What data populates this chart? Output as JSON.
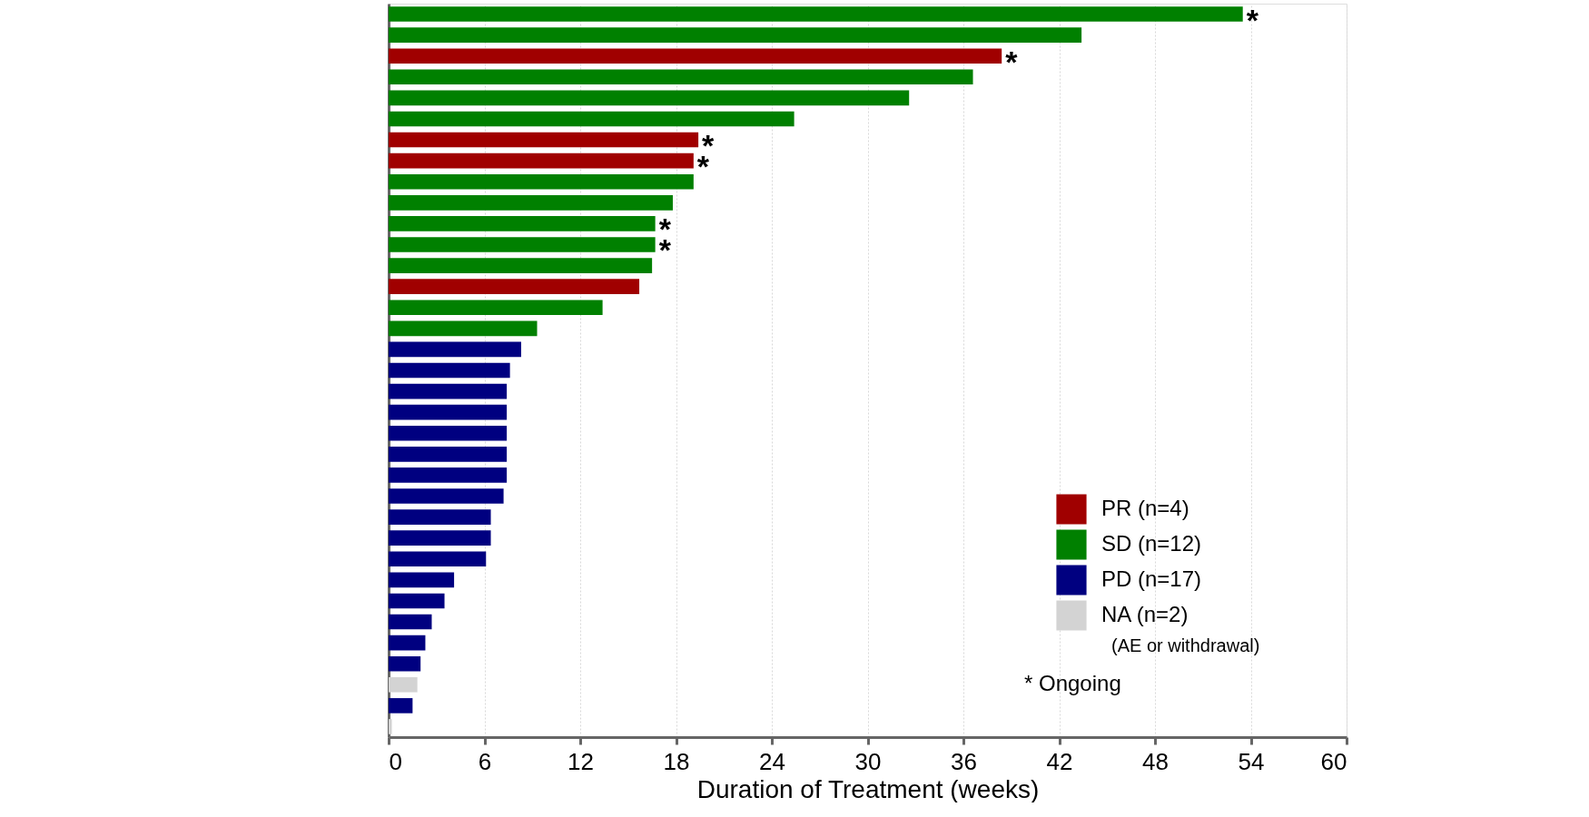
{
  "chart_data": {
    "type": "bar",
    "orientation": "horizontal",
    "xlabel": "Duration of Treatment (weeks)",
    "categories": [
      null,
      null,
      null,
      null,
      null,
      null,
      null,
      null,
      null,
      null,
      null,
      null,
      null,
      null,
      null,
      null,
      null,
      null,
      null,
      null,
      null,
      null,
      null,
      null,
      null,
      null,
      null,
      null,
      null,
      null,
      null,
      null,
      null,
      null,
      null
    ],
    "series": [
      {
        "name": "PR (n=4)",
        "color": "#a00000",
        "values": [
          null,
          null,
          38.4,
          null,
          null,
          null,
          19.4,
          19.1,
          null,
          null,
          null,
          null,
          null,
          15.7,
          null,
          null,
          null,
          null,
          null,
          null,
          null,
          null,
          null,
          null,
          null,
          null,
          null,
          null,
          null,
          null,
          null,
          null,
          null,
          null,
          null
        ]
      },
      {
        "name": "SD (n=12)",
        "color": "#008000",
        "values": [
          53.5,
          43.4,
          null,
          36.6,
          32.6,
          25.4,
          null,
          null,
          19.1,
          17.8,
          16.7,
          16.7,
          16.5,
          null,
          13.4,
          9.3,
          null,
          null,
          null,
          null,
          null,
          null,
          null,
          null,
          null,
          null,
          null,
          null,
          null,
          null,
          null,
          null,
          null,
          null,
          null
        ]
      },
      {
        "name": "PD (n=17)",
        "color": "#000080",
        "values": [
          null,
          null,
          null,
          null,
          null,
          null,
          null,
          null,
          null,
          null,
          null,
          null,
          null,
          null,
          null,
          null,
          8.3,
          7.6,
          7.4,
          7.4,
          7.4,
          7.4,
          7.4,
          7.2,
          6.4,
          6.4,
          6.1,
          4.1,
          3.5,
          2.7,
          2.3,
          2.0,
          null,
          1.5,
          null
        ]
      },
      {
        "name": "NA (n=2)",
        "color": "#d3d3d3",
        "values": [
          null,
          null,
          null,
          null,
          null,
          null,
          null,
          null,
          null,
          null,
          null,
          null,
          null,
          null,
          null,
          null,
          null,
          null,
          null,
          null,
          null,
          null,
          null,
          null,
          null,
          null,
          null,
          null,
          null,
          null,
          null,
          null,
          1.8,
          null,
          0.2
        ]
      }
    ],
    "value_labels": [
      "*",
      null,
      "*",
      null,
      null,
      null,
      "*",
      "*",
      null,
      null,
      "*",
      "*",
      null,
      null,
      null,
      null,
      null,
      null,
      null,
      null,
      null,
      null,
      null,
      null,
      null,
      null,
      null,
      null,
      null,
      null,
      null,
      null,
      null,
      null,
      null
    ],
    "annotations": [
      "(AE or withdrawal)",
      "* Ongoing"
    ],
    "xlim": [
      0,
      60
    ],
    "xticks": [
      0,
      6,
      12,
      18,
      24,
      30,
      36,
      42,
      48,
      54,
      60
    ],
    "grid": "x",
    "legend": "bottom right"
  }
}
